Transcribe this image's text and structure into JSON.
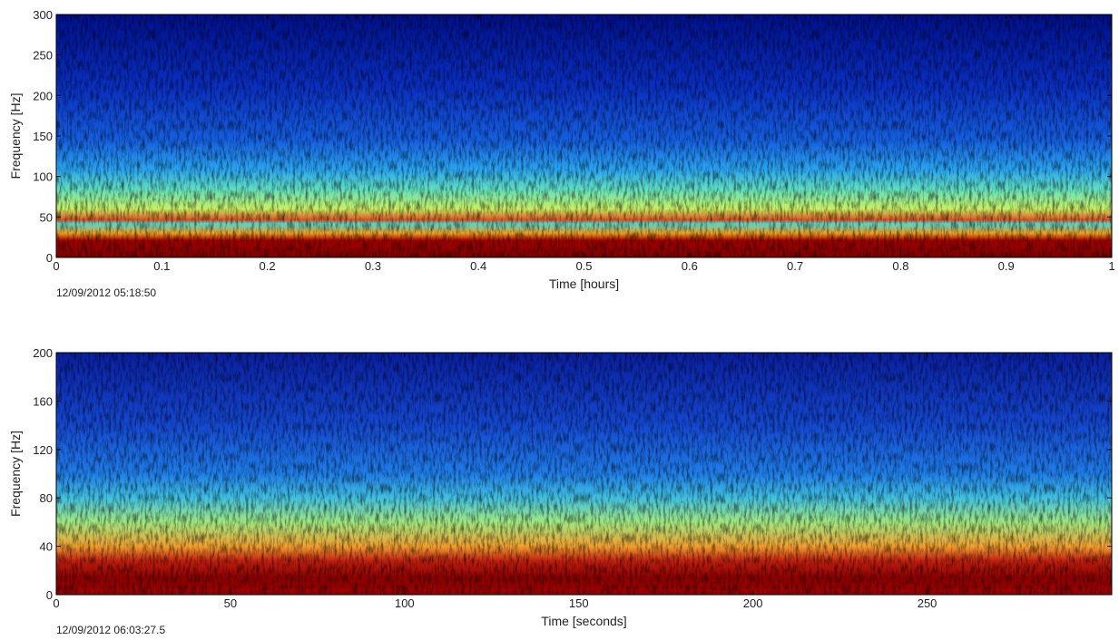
{
  "chart_data": [
    {
      "type": "spectrogram",
      "xlabel": "Time [hours]",
      "ylabel": "Frequency [Hz]",
      "xlim": [
        0,
        1
      ],
      "xticks": [
        0,
        0.1,
        0.2,
        0.3,
        0.4,
        0.5,
        0.6,
        0.7,
        0.8,
        0.9,
        1
      ],
      "ylim": [
        0,
        300
      ],
      "yticks": [
        0,
        50,
        100,
        150,
        200,
        250,
        300
      ],
      "annotation": "12/09/2012 05:18:50"
    },
    {
      "type": "spectrogram",
      "xlabel": "Time [seconds]",
      "ylabel": "Frequency [Hz]",
      "xlim": [
        0,
        303
      ],
      "xticks": [
        0,
        50,
        100,
        150,
        200,
        250
      ],
      "ylim": [
        0,
        200
      ],
      "yticks": [
        0,
        40,
        80,
        120,
        160,
        200
      ],
      "annotation": "12/09/2012 06:03:27.5"
    }
  ]
}
